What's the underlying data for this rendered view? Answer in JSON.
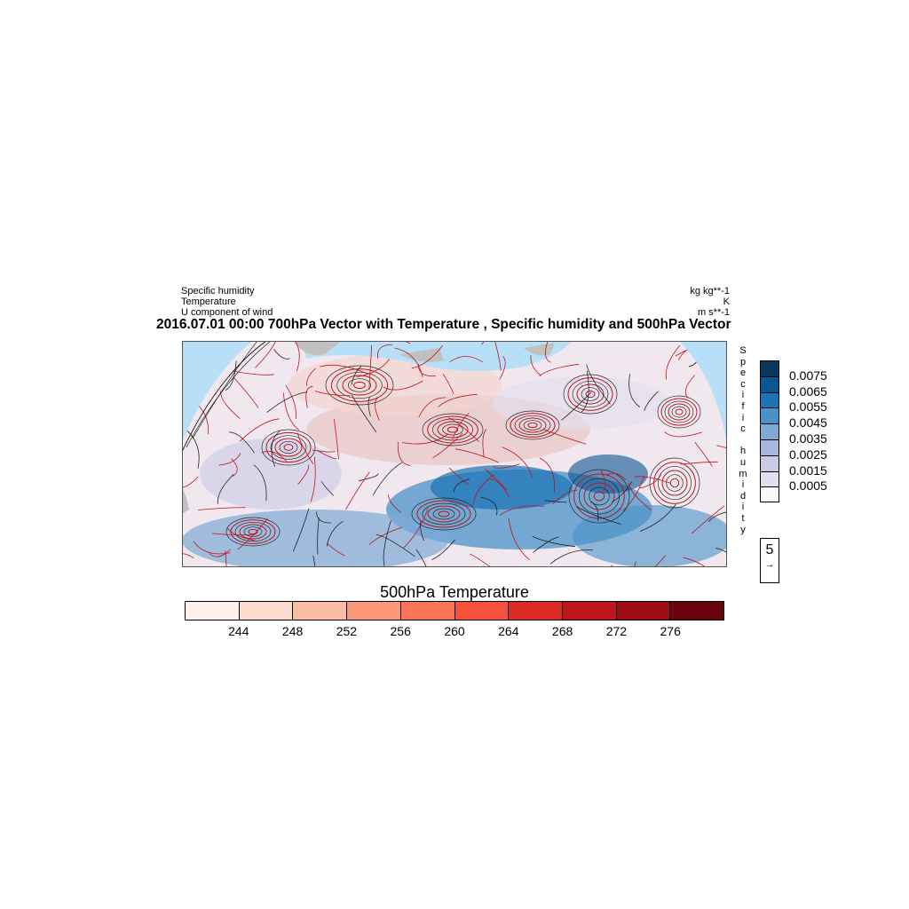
{
  "header": {
    "left_lines": [
      "Specific humidity",
      "Temperature",
      "U component of wind"
    ],
    "right_lines": [
      "kg kg**-1",
      "K",
      "m s**-1"
    ],
    "title": "2016.07.01 00:00 700hPa Vector with Temperature , Specific humidity and 500hPa Vector"
  },
  "humidity_bar": {
    "label_letters": [
      "S",
      "p",
      "e",
      "c",
      "i",
      "f",
      "i",
      "c",
      "",
      "h",
      "u",
      "m",
      "i",
      "d",
      "i",
      "t",
      "y"
    ],
    "labels": [
      "0.0075",
      "0.0065",
      "0.0055",
      "0.0045",
      "0.0035",
      "0.0025",
      "0.0015",
      "0.0005"
    ],
    "colors": [
      "#08375e",
      "#0a5593",
      "#1b74b5",
      "#4a92c8",
      "#7eaad5",
      "#a6b6dc",
      "#cbcbe6",
      "#e3dff0",
      "#fbf6fa"
    ]
  },
  "reference_vector": {
    "value": "5"
  },
  "temperature_bar": {
    "title": "500hPa Temperature",
    "labels": [
      "244",
      "248",
      "252",
      "256",
      "260",
      "264",
      "268",
      "272",
      "276"
    ],
    "colors": [
      "#fff2ed",
      "#fedbd0",
      "#fcbba3",
      "#fc9878",
      "#fb7658",
      "#f4503a",
      "#dc2b26",
      "#bd161b",
      "#9e0d16",
      "#6a0510"
    ]
  },
  "map": {
    "ocean_color": "#b7dff8",
    "land_color": "#c0c0c0"
  }
}
